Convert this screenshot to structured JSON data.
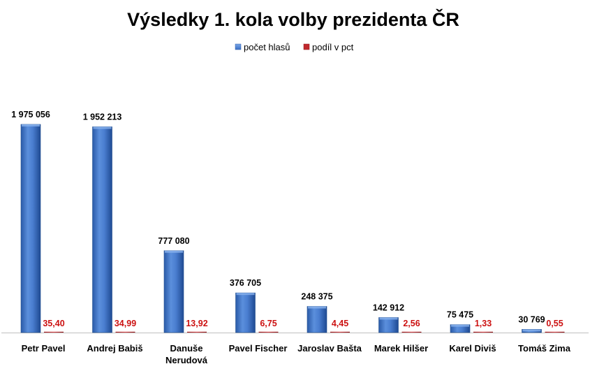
{
  "chart_data": {
    "type": "bar",
    "title": "Výsledky 1. kola volby prezidenta ČR",
    "categories": [
      [
        "Petr Pavel"
      ],
      [
        "Andrej Babiš"
      ],
      [
        "Danuše",
        "Nerudová"
      ],
      [
        "Pavel Fischer"
      ],
      [
        "Jaroslav Bašta"
      ],
      [
        "Marek Hilšer"
      ],
      [
        "Karel Diviš"
      ],
      [
        "Tomáš Zima"
      ]
    ],
    "series": [
      {
        "name": "počet hlasů",
        "color": "#3a6fc4",
        "values": [
          1975056,
          1952213,
          777080,
          376705,
          248375,
          142912,
          75475,
          30769
        ],
        "labels": [
          "1 975  056",
          "1 952  213",
          "777  080",
          "376  705",
          "248  375",
          "142  912",
          "75  475",
          "30  769"
        ]
      },
      {
        "name": "podíl v pct",
        "color": "#c0282d",
        "values": [
          35.4,
          34.99,
          13.92,
          6.75,
          4.45,
          2.56,
          1.33,
          0.55
        ],
        "labels": [
          "35,40",
          "34,99",
          "13,92",
          "6,75",
          "4,45",
          "2,56",
          "1,33",
          "0,55"
        ]
      }
    ],
    "legend_position": "top-center",
    "grid": false
  }
}
